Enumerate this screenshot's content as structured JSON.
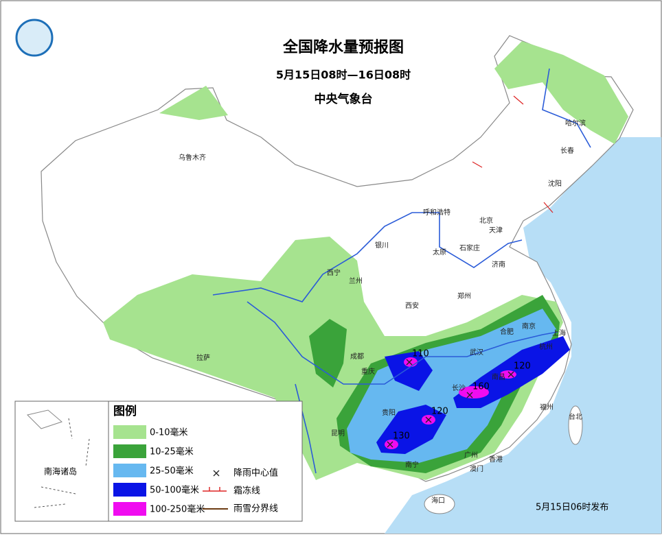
{
  "header": {
    "title": "全国降水量预报图",
    "period": "5月15日08时—16日08时",
    "issuer": "中央气象台"
  },
  "legend": {
    "title": "图例",
    "items": [
      {
        "label": "0-10毫米",
        "color": "#a6e38f"
      },
      {
        "label": "10-25毫米",
        "color": "#3aa33a"
      },
      {
        "label": "25-50毫米",
        "color": "#66b8f0"
      },
      {
        "label": "50-100毫米",
        "color": "#0a14e6"
      },
      {
        "label": "100-250毫米",
        "color": "#f00cf0"
      }
    ],
    "symbols": [
      {
        "label": "降雨中心值"
      },
      {
        "label": "霜冻线"
      },
      {
        "label": "雨雪分界线"
      }
    ]
  },
  "cities": [
    "乌鲁木齐",
    "哈尔滨",
    "长春",
    "沈阳",
    "呼和浩特",
    "北京",
    "天津",
    "银川",
    "石家庄",
    "太原",
    "济南",
    "西宁",
    "兰州",
    "郑州",
    "西安",
    "合肥",
    "南京",
    "上海",
    "杭州",
    "拉萨",
    "成都",
    "武汉",
    "重庆",
    "长沙",
    "南昌",
    "贵阳",
    "福州",
    "台北",
    "昆明",
    "南宁",
    "广州",
    "香港",
    "澳门",
    "海口"
  ],
  "centers": [
    {
      "value": 110
    },
    {
      "value": 160
    },
    {
      "value": 120
    },
    {
      "value": 120
    },
    {
      "value": 130
    }
  ],
  "inset": {
    "label": "南海诸岛"
  },
  "footer": {
    "issued": "5月15日06时发布"
  }
}
